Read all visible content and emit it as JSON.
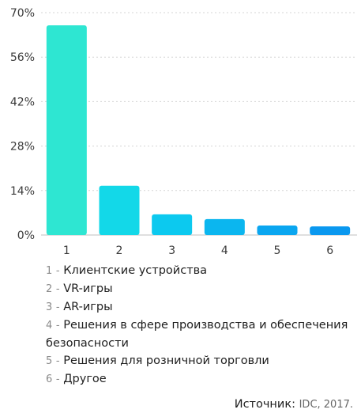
{
  "chart_data": {
    "type": "bar",
    "categories": [
      "1",
      "2",
      "3",
      "4",
      "5",
      "6"
    ],
    "values": [
      66,
      15.5,
      6.5,
      5,
      3,
      2.7
    ],
    "yticks": [
      "0%",
      "14%",
      "28%",
      "42%",
      "56%",
      "70%"
    ],
    "ylim": [
      0,
      70
    ],
    "grid": "horizontal dotted",
    "bar_colors": [
      "#2ee6d2",
      "#13d8e8",
      "#0cc9ef",
      "#0bb6ef",
      "#0aa6f0",
      "#0a98ef"
    ]
  },
  "legend": [
    {
      "num": "1",
      "sep": "-",
      "text": "Клиентские устройства"
    },
    {
      "num": "2",
      "sep": "-",
      "text": "VR-игры"
    },
    {
      "num": "3",
      "sep": "-",
      "text": "AR-игры"
    },
    {
      "num": "4",
      "sep": "-",
      "text": "Решения в сфере производства и обеспечения безопасности"
    },
    {
      "num": "5",
      "sep": "-",
      "text": "Решения для розничной торговли"
    },
    {
      "num": "6",
      "sep": "-",
      "text": "Другое"
    }
  ],
  "source": {
    "label": "Источник:",
    "value": "IDC, 2017."
  }
}
